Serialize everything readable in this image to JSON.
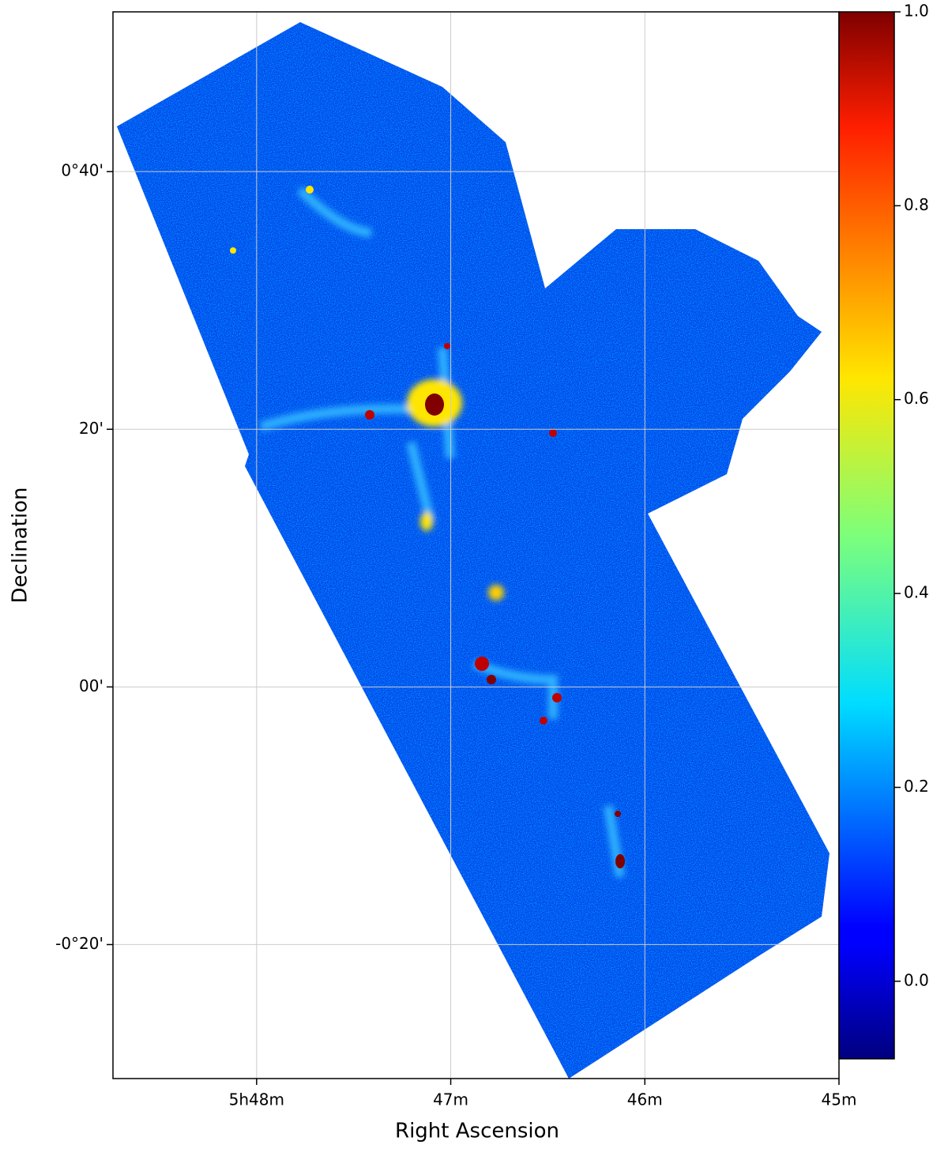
{
  "chart_data": {
    "type": "image",
    "x_label": "Right Ascension",
    "y_label": "Declination",
    "xlim": [
      48.74,
      45
    ],
    "xticks": [
      {
        "value": 48,
        "label": "5h48m"
      },
      {
        "value": 47,
        "label": "47m"
      },
      {
        "value": 46,
        "label": "46m"
      },
      {
        "value": 45,
        "label": "45m"
      }
    ],
    "ylim": [
      -30.4,
      52.4
    ],
    "yticks": [
      {
        "value": 40,
        "label": "0°40'"
      },
      {
        "value": 20,
        "label": "20'"
      },
      {
        "value": 0,
        "label": "00'"
      },
      {
        "value": -20,
        "label": "-0°20'"
      }
    ],
    "grid": true,
    "colormap": "jet",
    "clim": [
      -0.08,
      1.0
    ],
    "colorbar_ticks": [
      {
        "value": 0,
        "label": "0.0"
      },
      0.2,
      0.4,
      0.6,
      0.8,
      {
        "value": 1,
        "label": "1.0"
      }
    ]
  }
}
